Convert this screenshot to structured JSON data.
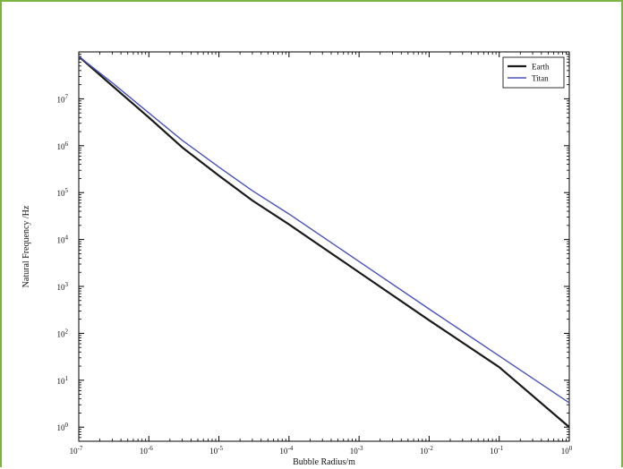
{
  "colors": {
    "border": "#7cb342",
    "earth": "#1a1a1a",
    "titan": "#4a52b8"
  },
  "chart_data": {
    "type": "line",
    "title": "",
    "xlabel": "Bubble Radius/m",
    "ylabel": "Natural Frequency /Hz",
    "xscale": "log",
    "yscale": "log",
    "xlim": [
      1e-07,
      1
    ],
    "ylim": [
      0.5,
      100000000.0
    ],
    "grid": false,
    "legend": "top-right",
    "x_ticks": [
      {
        "value": 1e-07,
        "base": "10",
        "exp": "-7"
      },
      {
        "value": 1e-06,
        "base": "10",
        "exp": "-6"
      },
      {
        "value": 1e-05,
        "base": "10",
        "exp": "-5"
      },
      {
        "value": 0.0001,
        "base": "10",
        "exp": "-4"
      },
      {
        "value": 0.001,
        "base": "10",
        "exp": "-3"
      },
      {
        "value": 0.01,
        "base": "10",
        "exp": "-2"
      },
      {
        "value": 0.1,
        "base": "10",
        "exp": "-1"
      },
      {
        "value": 1,
        "base": "10",
        "exp": "0"
      }
    ],
    "y_ticks": [
      {
        "value": 1.0,
        "base": "10",
        "exp": "0"
      },
      {
        "value": 10.0,
        "base": "10",
        "exp": "1"
      },
      {
        "value": 100.0,
        "base": "10",
        "exp": "2"
      },
      {
        "value": 1000.0,
        "base": "10",
        "exp": "3"
      },
      {
        "value": 10000.0,
        "base": "10",
        "exp": "4"
      },
      {
        "value": 100000.0,
        "base": "10",
        "exp": "5"
      },
      {
        "value": 1000000.0,
        "base": "10",
        "exp": "6"
      },
      {
        "value": 10000000.0,
        "base": "10",
        "exp": "7"
      }
    ],
    "series": [
      {
        "name": "Earth",
        "color": "#1a1a1a",
        "x": [
          1e-07,
          3e-07,
          1e-06,
          3e-06,
          1e-05,
          3e-05,
          0.0001,
          0.001,
          0.01,
          0.1,
          1
        ],
        "y": [
          80000000.0,
          19000000.0,
          4000000.0,
          920000.0,
          230000.0,
          68000.0,
          21000.0,
          2000.0,
          190.0,
          19.0,
          1.0
        ]
      },
      {
        "name": "Titan",
        "color": "#4a52b8",
        "x": [
          1e-07,
          3e-07,
          1e-06,
          3e-06,
          1e-05,
          3e-05,
          0.0001,
          0.001,
          0.01,
          0.1,
          1
        ],
        "y": [
          80000000.0,
          22000000.0,
          5000000.0,
          1300000.0,
          350000.0,
          110000.0,
          35000.0,
          3400.0,
          330.0,
          33.0,
          3.3
        ]
      }
    ]
  }
}
